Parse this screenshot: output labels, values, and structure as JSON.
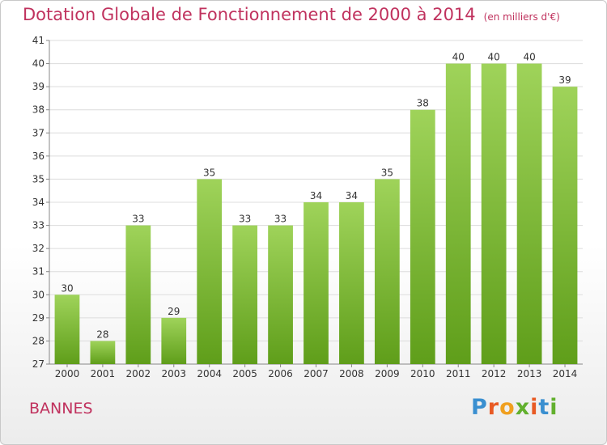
{
  "title": "Dotation Globale de Fonctionnement de 2000 à 2014",
  "subtitle": "(en milliers d'€)",
  "city": "BANNES",
  "logo": "Proxiti",
  "colors": {
    "title": "#c0325e",
    "bar_top": "#9fd35a",
    "bar_bottom": "#5f9e1a"
  },
  "chart_data": {
    "type": "bar",
    "categories": [
      "2000",
      "2001",
      "2002",
      "2003",
      "2004",
      "2005",
      "2006",
      "2007",
      "2008",
      "2009",
      "2010",
      "2011",
      "2012",
      "2013",
      "2014"
    ],
    "values": [
      30,
      28,
      33,
      29,
      35,
      33,
      33,
      34,
      34,
      35,
      38,
      40,
      40,
      40,
      39
    ],
    "ylim": [
      27,
      41
    ],
    "yticks": [
      27,
      28,
      29,
      30,
      31,
      32,
      33,
      34,
      35,
      36,
      37,
      38,
      39,
      40,
      41
    ],
    "grid": true
  }
}
